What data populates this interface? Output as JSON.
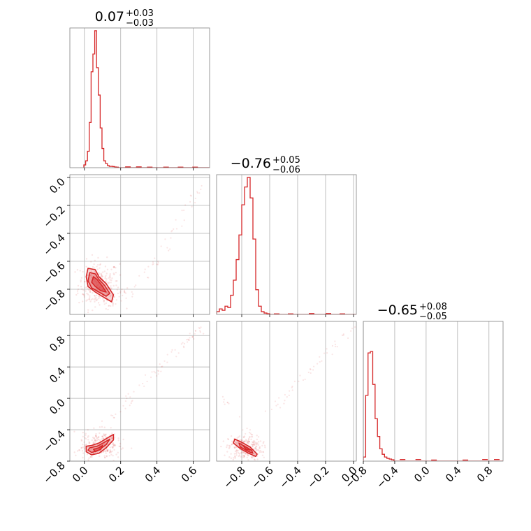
{
  "chart_data": {
    "type": "corner",
    "grid": true,
    "color": "#d62728",
    "panels": [
      {
        "id": "hist-p1",
        "kind": "histogram",
        "title": {
          "median": "0.07",
          "plus": "+0.03",
          "minus": "−0.03"
        },
        "xlim": [
          -0.08,
          0.69
        ],
        "xticks": [
          0.0,
          0.2,
          0.4,
          0.6
        ],
        "bin_edges": [
          -0.003,
          0.007,
          0.017,
          0.027,
          0.037,
          0.047,
          0.057,
          0.067,
          0.077,
          0.087,
          0.097,
          0.107,
          0.117,
          0.127,
          0.137,
          0.147,
          0.157,
          0.167,
          0.177,
          0.187
        ],
        "counts": [
          0.02,
          0.05,
          0.12,
          0.33,
          0.7,
          0.83,
          1.0,
          0.73,
          0.53,
          0.29,
          0.14,
          0.05,
          0.03,
          0.015,
          0.01,
          0.01,
          0.008,
          0.005,
          0.004
        ],
        "tail": [
          {
            "x": 0.24,
            "c": 0.006
          },
          {
            "x": 0.3,
            "c": 0.006
          },
          {
            "x": 0.36,
            "c": 0.004
          },
          {
            "x": 0.45,
            "c": 0.004
          },
          {
            "x": 0.53,
            "c": 0.004
          },
          {
            "x": 0.61,
            "c": 0.004
          }
        ]
      },
      {
        "id": "scatter-p2-p1",
        "kind": "density",
        "xlim": [
          -0.08,
          0.69
        ],
        "ylim": [
          -0.98,
          0.02
        ],
        "xticks": [
          0.0,
          0.2,
          0.4,
          0.6
        ],
        "yticks": [
          0.0,
          -0.2,
          -0.4,
          -0.6,
          -0.8
        ],
        "ytick_labels": [
          "0.0",
          "−0.2",
          "−0.4",
          "−0.6",
          "−0.8"
        ],
        "contours": [
          [
            [
              0.02,
              -0.65
            ],
            [
              0.06,
              -0.66
            ],
            [
              0.08,
              -0.71
            ],
            [
              0.12,
              -0.76
            ],
            [
              0.16,
              -0.84
            ],
            [
              0.15,
              -0.89
            ],
            [
              0.11,
              -0.86
            ],
            [
              0.06,
              -0.82
            ],
            [
              0.02,
              -0.78
            ],
            [
              0.01,
              -0.71
            ]
          ],
          [
            [
              0.03,
              -0.68
            ],
            [
              0.06,
              -0.69
            ],
            [
              0.08,
              -0.73
            ],
            [
              0.11,
              -0.77
            ],
            [
              0.14,
              -0.83
            ],
            [
              0.12,
              -0.85
            ],
            [
              0.08,
              -0.82
            ],
            [
              0.04,
              -0.79
            ],
            [
              0.02,
              -0.74
            ]
          ],
          [
            [
              0.05,
              -0.71
            ],
            [
              0.07,
              -0.73
            ],
            [
              0.1,
              -0.78
            ],
            [
              0.12,
              -0.82
            ],
            [
              0.09,
              -0.81
            ],
            [
              0.06,
              -0.78
            ],
            [
              0.04,
              -0.75
            ]
          ]
        ]
      },
      {
        "id": "hist-p2",
        "kind": "histogram",
        "title": {
          "median": "−0.76",
          "plus": "+0.05",
          "minus": "−0.06"
        },
        "xlim": [
          -0.98,
          0.02
        ],
        "xticks": [
          -0.8,
          -0.6,
          -0.4,
          -0.2,
          0.0
        ],
        "xtick_labels": [
          "−0.8",
          "−0.6",
          "−0.4",
          "−0.2",
          "0.0"
        ],
        "bin_edges": [
          -0.98,
          -0.96,
          -0.94,
          -0.92,
          -0.9,
          -0.88,
          -0.86,
          -0.84,
          -0.82,
          -0.8,
          -0.78,
          -0.76,
          -0.74,
          -0.72,
          -0.7,
          -0.68,
          -0.66,
          -0.64,
          -0.62,
          -0.6
        ],
        "counts": [
          0.02,
          0.04,
          0.03,
          0.06,
          0.05,
          0.14,
          0.25,
          0.4,
          0.58,
          0.8,
          0.93,
          1.0,
          0.85,
          0.55,
          0.18,
          0.06,
          0.02,
          0.01,
          0.005
        ],
        "tail": [
          {
            "x": -0.55,
            "c": 0.004
          },
          {
            "x": -0.45,
            "c": 0.004
          },
          {
            "x": -0.3,
            "c": 0.006
          },
          {
            "x": -0.18,
            "c": 0.006
          },
          {
            "x": -0.08,
            "c": 0.004
          }
        ]
      },
      {
        "id": "scatter-p3-p1",
        "kind": "density",
        "xlim": [
          -0.08,
          0.69
        ],
        "ylim": [
          -0.8,
          0.98
        ],
        "xticks": [
          0.0,
          0.2,
          0.4,
          0.6
        ],
        "yticks": [
          0.8,
          0.4,
          0.0,
          -0.4,
          -0.8
        ],
        "ytick_labels": [
          "0.8",
          "0.4",
          "0.0",
          "−0.4",
          "−0.8"
        ],
        "contours": [
          [
            [
              0.01,
              -0.61
            ],
            [
              0.04,
              -0.6
            ],
            [
              0.08,
              -0.57
            ],
            [
              0.13,
              -0.5
            ],
            [
              0.16,
              -0.46
            ],
            [
              0.16,
              -0.53
            ],
            [
              0.12,
              -0.63
            ],
            [
              0.08,
              -0.7
            ],
            [
              0.04,
              -0.72
            ],
            [
              0.01,
              -0.68
            ]
          ],
          [
            [
              0.03,
              -0.63
            ],
            [
              0.07,
              -0.61
            ],
            [
              0.11,
              -0.56
            ],
            [
              0.14,
              -0.52
            ],
            [
              0.12,
              -0.59
            ],
            [
              0.08,
              -0.66
            ],
            [
              0.04,
              -0.69
            ],
            [
              0.02,
              -0.66
            ]
          ],
          [
            [
              0.05,
              -0.65
            ],
            [
              0.08,
              -0.63
            ],
            [
              0.1,
              -0.6
            ],
            [
              0.09,
              -0.65
            ],
            [
              0.06,
              -0.68
            ]
          ]
        ]
      },
      {
        "id": "scatter-p3-p2",
        "kind": "density",
        "xlim": [
          -0.98,
          0.02
        ],
        "ylim": [
          -0.8,
          0.98
        ],
        "xticks": [
          -0.8,
          -0.6,
          -0.4,
          -0.2,
          0.0
        ],
        "xtick_labels": [
          "−0.8",
          "−0.6",
          "−0.4",
          "−0.2",
          "0.0"
        ],
        "contours": [
          [
            [
              -0.85,
              -0.52
            ],
            [
              -0.8,
              -0.56
            ],
            [
              -0.74,
              -0.62
            ],
            [
              -0.69,
              -0.71
            ],
            [
              -0.7,
              -0.74
            ],
            [
              -0.75,
              -0.7
            ],
            [
              -0.81,
              -0.64
            ],
            [
              -0.86,
              -0.57
            ]
          ],
          [
            [
              -0.82,
              -0.57
            ],
            [
              -0.78,
              -0.61
            ],
            [
              -0.73,
              -0.66
            ],
            [
              -0.72,
              -0.7
            ],
            [
              -0.76,
              -0.67
            ],
            [
              -0.81,
              -0.62
            ]
          ],
          [
            [
              -0.79,
              -0.6
            ],
            [
              -0.76,
              -0.63
            ],
            [
              -0.74,
              -0.66
            ],
            [
              -0.77,
              -0.65
            ]
          ]
        ]
      },
      {
        "id": "hist-p3",
        "kind": "histogram",
        "title": {
          "median": "−0.65",
          "plus": "+0.08",
          "minus": "−0.05"
        },
        "xlim": [
          -0.8,
          0.98
        ],
        "xticks": [
          -0.8,
          -0.4,
          0.0,
          0.4,
          0.8
        ],
        "xtick_labels": [
          "−0.8",
          "−0.4",
          "0.0",
          "0.4",
          "0.8"
        ],
        "bin_edges": [
          -0.8,
          -0.77,
          -0.74,
          -0.71,
          -0.68,
          -0.65,
          -0.62,
          -0.59,
          -0.56,
          -0.53,
          -0.5,
          -0.47,
          -0.44,
          -0.41
        ],
        "counts": [
          0.03,
          0.48,
          0.79,
          0.8,
          0.56,
          0.31,
          0.18,
          0.09,
          0.05,
          0.03,
          0.02,
          0.015,
          0.01
        ],
        "tail": [
          {
            "x": -0.3,
            "c": 0.012
          },
          {
            "x": -0.1,
            "c": 0.012
          },
          {
            "x": 0.1,
            "c": 0.008
          },
          {
            "x": 0.5,
            "c": 0.008
          },
          {
            "x": 0.75,
            "c": 0.012
          },
          {
            "x": 0.9,
            "c": 0.012
          }
        ]
      }
    ]
  }
}
